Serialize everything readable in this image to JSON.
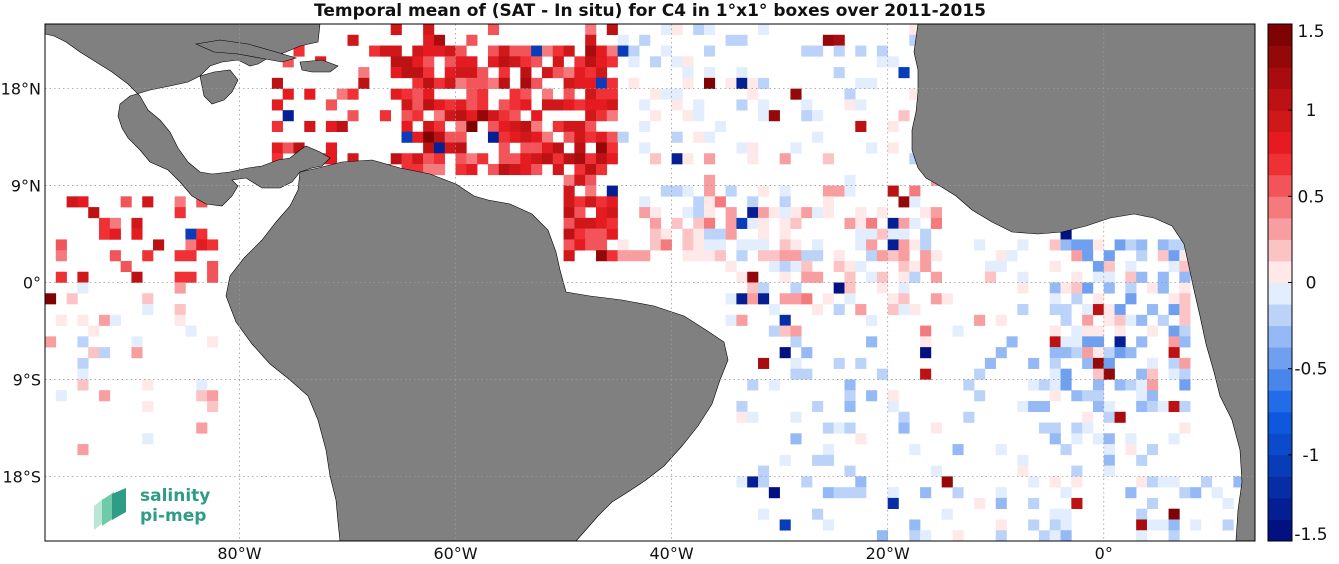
{
  "title": "Temporal mean of (SAT - In situ) for C4 in 1°x1° boxes over 2011-2015",
  "map": {
    "lon_range": [
      -98,
      14
    ],
    "lat_range": [
      -24,
      24
    ],
    "lon_ticks": [
      {
        "value": -80,
        "label": "80°W"
      },
      {
        "value": -60,
        "label": "60°W"
      },
      {
        "value": -40,
        "label": "40°W"
      },
      {
        "value": -20,
        "label": "20°W"
      },
      {
        "value": 0,
        "label": "0°"
      }
    ],
    "lat_ticks": [
      {
        "value": 18,
        "label": "18°N"
      },
      {
        "value": 9,
        "label": "9°N"
      },
      {
        "value": 0,
        "label": "0°"
      },
      {
        "value": -9,
        "label": "9°S"
      },
      {
        "value": -18,
        "label": "18°S"
      }
    ],
    "grid": "dotted",
    "land_color": "#808080"
  },
  "colorbar": {
    "range": [
      -1.5,
      1.5
    ],
    "ticks": [
      {
        "value": 1.5,
        "label": "1.5"
      },
      {
        "value": 1,
        "label": "1"
      },
      {
        "value": 0.5,
        "label": "0.5"
      },
      {
        "value": 0,
        "label": "0"
      },
      {
        "value": -0.5,
        "label": "-0.5"
      },
      {
        "value": -1,
        "label": "-1"
      },
      {
        "value": -1.5,
        "label": "-1.5"
      }
    ],
    "colormap": "blue-white-red, diverging, 24 steps"
  },
  "logo": {
    "line1": "salinity",
    "line2": "pi-mep"
  }
}
